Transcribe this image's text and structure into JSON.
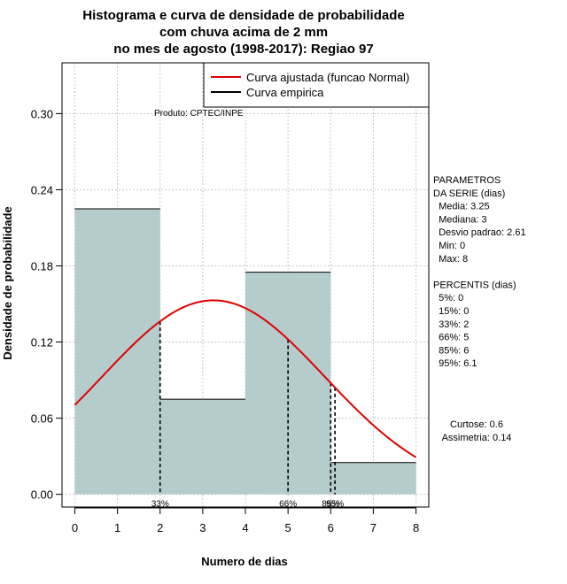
{
  "chart_data": {
    "type": "bar",
    "title_lines": [
      "Histograma e curva de densidade de probabilidade",
      "com chuva acima de 2 mm",
      "no mes de agosto (1998-2017): Regiao 97"
    ],
    "xlabel": "Numero de dias",
    "ylabel": "Densidade de probabilidade",
    "xlim": [
      -0.3,
      8.3
    ],
    "ylim": [
      -0.01,
      0.34
    ],
    "xticks": [
      0,
      1,
      2,
      3,
      4,
      5,
      6,
      7,
      8
    ],
    "xtick_labels": [
      "0",
      "1",
      "2",
      "3",
      "4",
      "5",
      "6",
      "7",
      "8"
    ],
    "yticks": [
      0.0,
      0.06,
      0.12,
      0.18,
      0.24,
      0.3
    ],
    "ytick_labels": [
      "0.00",
      "0.06",
      "0.12",
      "0.18",
      "0.24",
      "0.30"
    ],
    "grid": true,
    "bins": [
      {
        "x0": 0,
        "x1": 2,
        "density": 0.225
      },
      {
        "x0": 2,
        "x1": 4,
        "density": 0.075
      },
      {
        "x0": 4,
        "x1": 6,
        "density": 0.175
      },
      {
        "x0": 6,
        "x1": 8,
        "density": 0.025
      }
    ],
    "bar_color": "#b5cccc",
    "normal_curve": {
      "mean": 3.25,
      "sd": 2.61,
      "color": "#e00000",
      "x_from": 0,
      "x_to": 8
    },
    "percentile_lines": [
      {
        "x": 2,
        "label": "33%"
      },
      {
        "x": 5,
        "label": "66%"
      },
      {
        "x": 6,
        "label": "85%"
      },
      {
        "x": 6.1,
        "label": "95%"
      }
    ],
    "legend": {
      "position": "top-right",
      "entries": [
        {
          "label": "Curva ajustada (funcao Normal)",
          "color": "#e00000"
        },
        {
          "label": "Curva empirica",
          "color": "#000000"
        }
      ]
    },
    "product_label": "Produto: CPTEC/INPE",
    "side_text": [
      "PARAMETROS",
      "DA SERIE (dias)",
      "  Media: 3.25",
      "  Mediana: 3",
      "  Desvio padrao: 2.61",
      "  Min: 0",
      "  Max: 8",
      "",
      "PERCENTIS (dias)",
      "  5%: 0",
      "  15%: 0",
      "  33%: 2",
      "  66%: 5",
      "  85%: 6",
      "  95%: 6.1"
    ],
    "stats_text": [
      "Curtose: 0.6",
      "Assimetria: 0.14"
    ]
  }
}
